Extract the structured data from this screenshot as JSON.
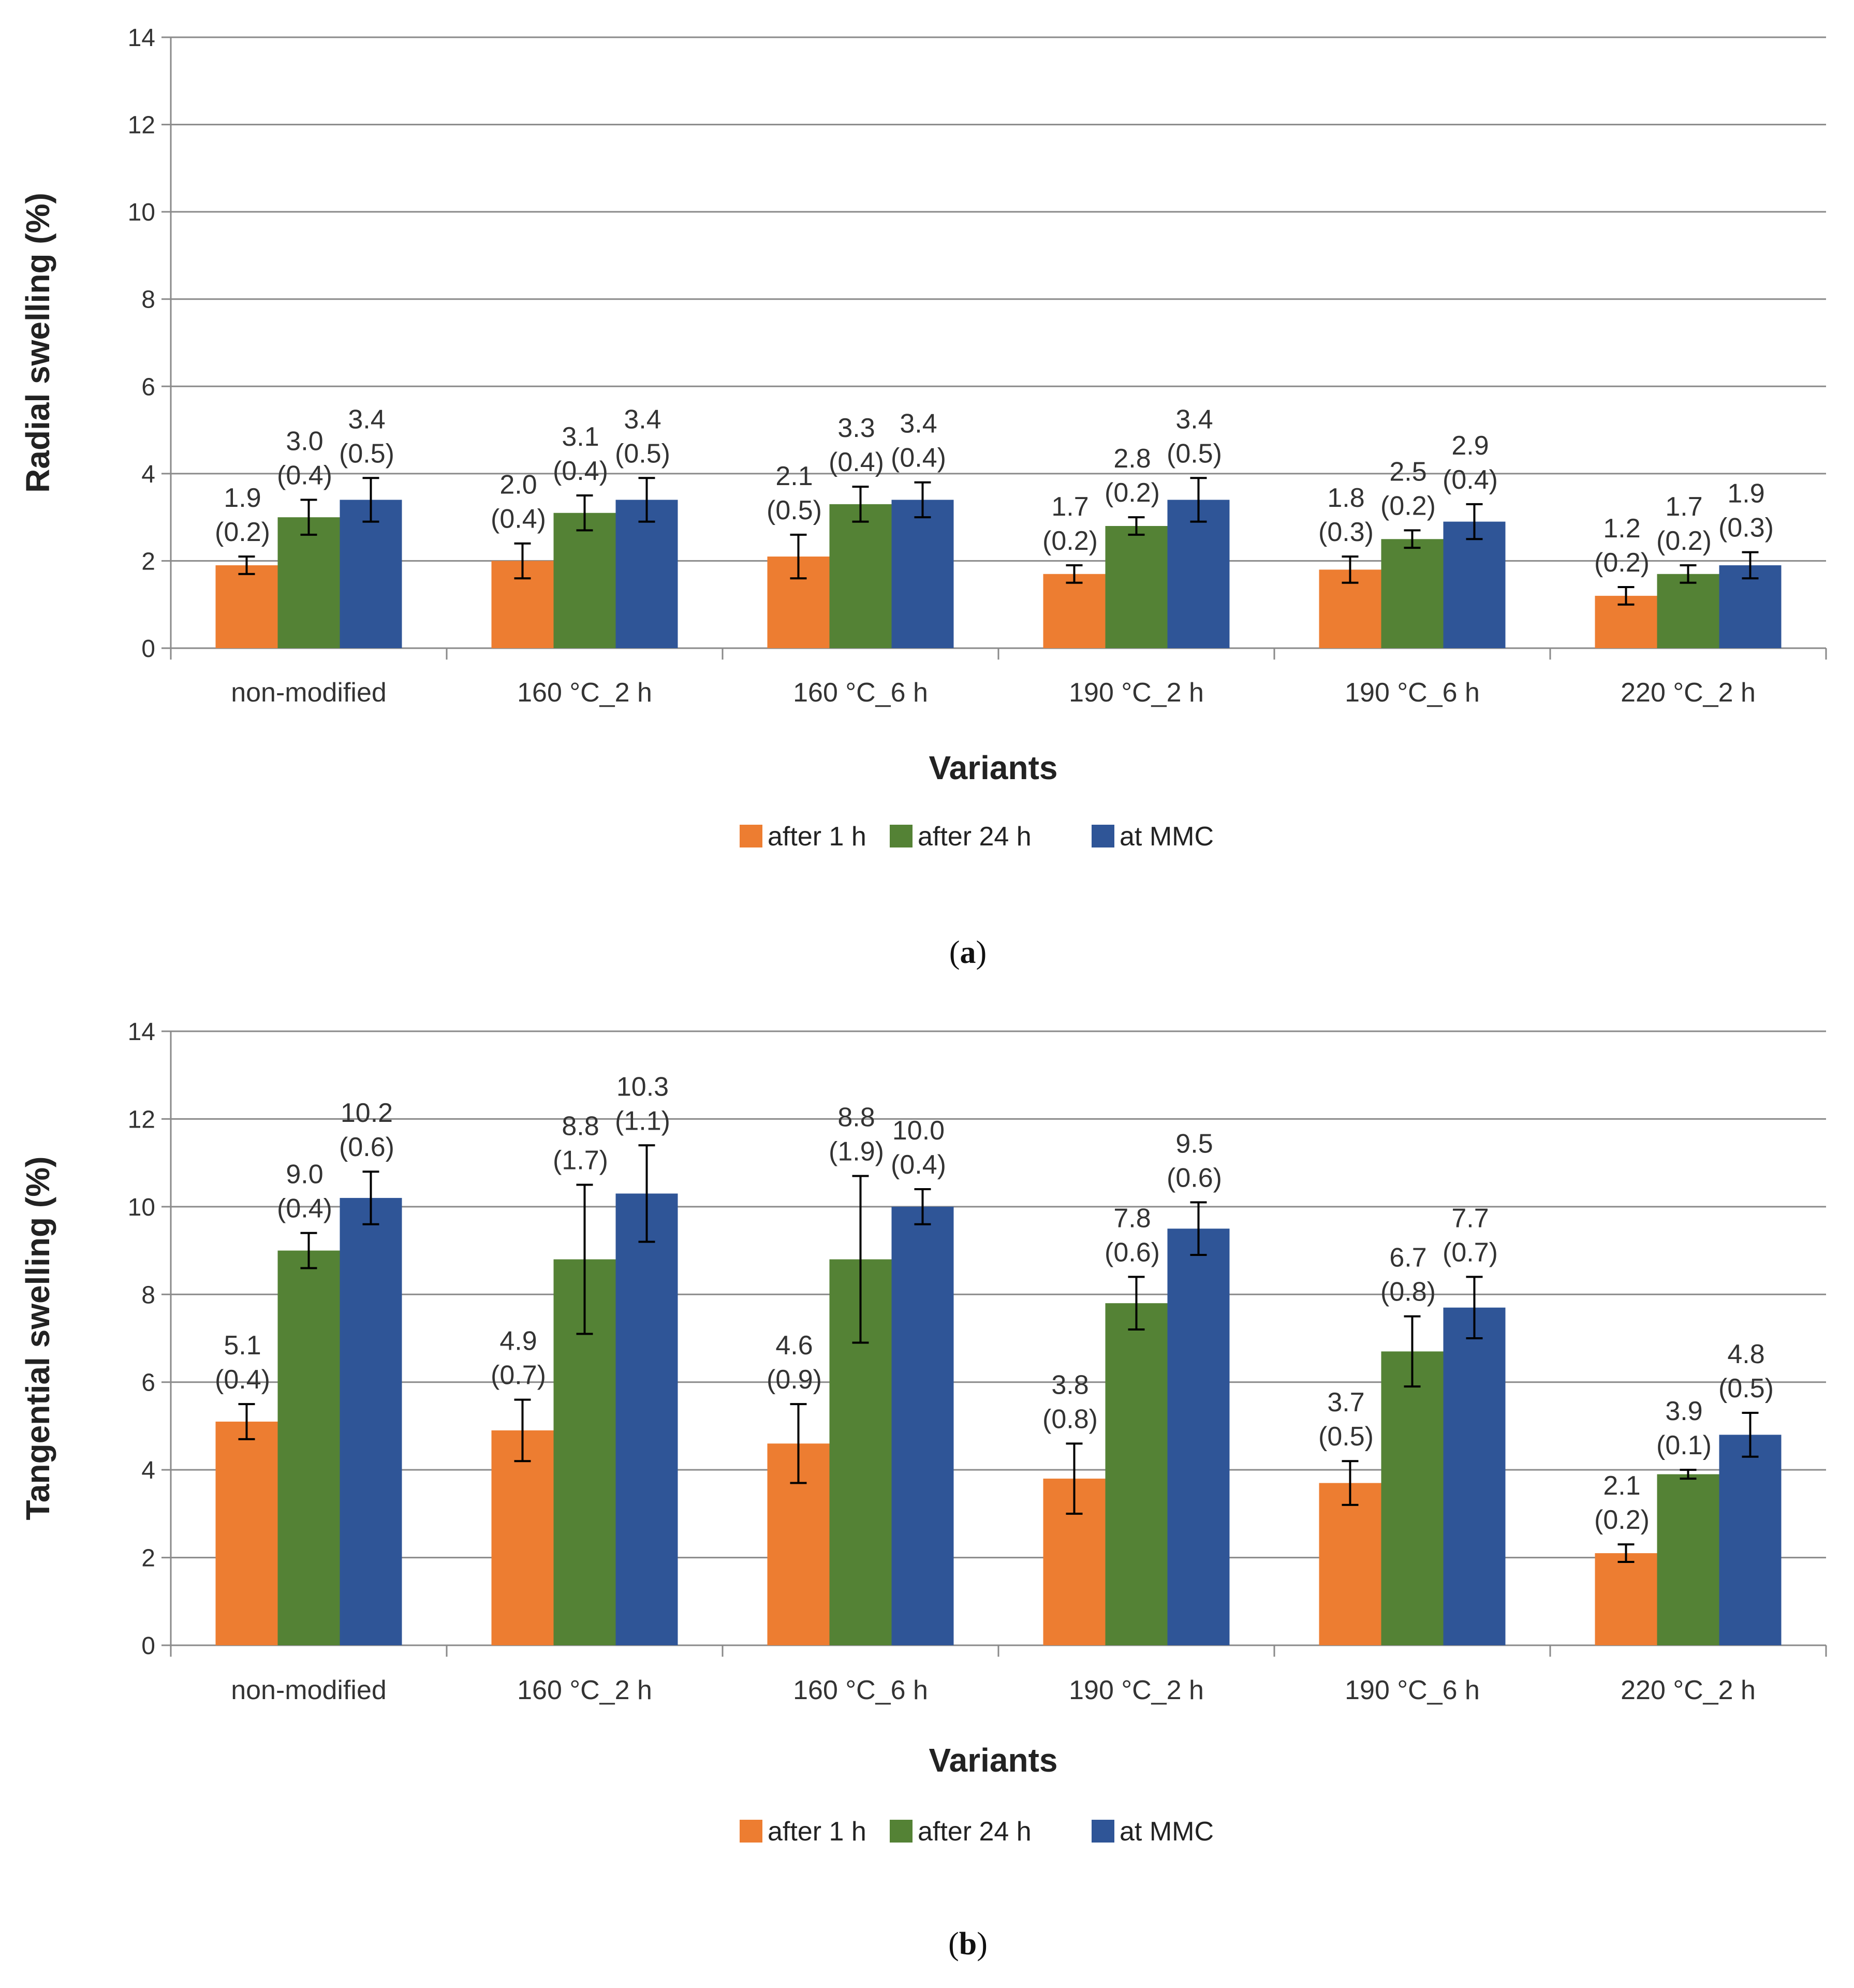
{
  "chart_data": [
    {
      "type": "bar",
      "caption_letter": "a",
      "title": "",
      "xlabel": "Variants",
      "ylabel": "Radial swelling (%)",
      "ylim": [
        0,
        14
      ],
      "yticks": [
        "0",
        "2",
        "4",
        "6",
        "8",
        "10",
        "12",
        "14"
      ],
      "grid": true,
      "legend_position": "bottom",
      "categories": [
        "non-modified",
        "160 °C_2 h",
        "160 °C_6 h",
        "190 °C_2 h",
        "190 °C_6 h",
        "220 °C_2 h"
      ],
      "series": [
        {
          "name": "after 1 h",
          "color": "#ED7D31",
          "values": [
            1.9,
            2.0,
            2.1,
            1.7,
            1.8,
            1.2
          ],
          "errors": [
            0.2,
            0.4,
            0.5,
            0.2,
            0.3,
            0.2
          ],
          "labels": [
            "1.9",
            "2.0",
            "2.1",
            "1.7",
            "1.8",
            "1.2"
          ],
          "error_labels": [
            "(0.2)",
            "(0.4)",
            "(0.5)",
            "(0.2)",
            "(0.3)",
            "(0.2)"
          ]
        },
        {
          "name": "after 24 h",
          "color": "#548235",
          "values": [
            3.0,
            3.1,
            3.3,
            2.8,
            2.5,
            1.7
          ],
          "errors": [
            0.4,
            0.4,
            0.4,
            0.2,
            0.2,
            0.2
          ],
          "labels": [
            "3.0",
            "3.1",
            "3.3",
            "2.8",
            "2.5",
            "1.7"
          ],
          "error_labels": [
            "(0.4)",
            "(0.4)",
            "(0.4)",
            "(0.2)",
            "(0.2)",
            "(0.2)"
          ]
        },
        {
          "name": "at MMC",
          "color": "#2F5597",
          "values": [
            3.4,
            3.4,
            3.4,
            3.4,
            2.9,
            1.9
          ],
          "errors": [
            0.5,
            0.5,
            0.4,
            0.5,
            0.4,
            0.3
          ],
          "labels": [
            "3.4",
            "3.4",
            "3.4",
            "3.4",
            "2.9",
            "1.9"
          ],
          "error_labels": [
            "(0.5)",
            "(0.5)",
            "(0.4)",
            "(0.5)",
            "(0.4)",
            "(0.3)"
          ]
        }
      ]
    },
    {
      "type": "bar",
      "caption_letter": "b",
      "title": "",
      "xlabel": "Variants",
      "ylabel": "Tangential swelling (%)",
      "ylim": [
        0,
        14
      ],
      "yticks": [
        "0",
        "2",
        "4",
        "6",
        "8",
        "10",
        "12",
        "14"
      ],
      "grid": true,
      "legend_position": "bottom",
      "categories": [
        "non-modified",
        "160 °C_2 h",
        "160 °C_6 h",
        "190 °C_2 h",
        "190 °C_6 h",
        "220 °C_2 h"
      ],
      "series": [
        {
          "name": "after 1 h",
          "color": "#ED7D31",
          "values": [
            5.1,
            4.9,
            4.6,
            3.8,
            3.7,
            2.1
          ],
          "errors": [
            0.4,
            0.7,
            0.9,
            0.8,
            0.5,
            0.2
          ],
          "labels": [
            "5.1",
            "4.9",
            "4.6",
            "3.8",
            "3.7",
            "2.1"
          ],
          "error_labels": [
            "(0.4)",
            "(0.7)",
            "(0.9)",
            "(0.8)",
            "(0.5)",
            "(0.2)"
          ]
        },
        {
          "name": "after 24 h",
          "color": "#548235",
          "values": [
            9.0,
            8.8,
            8.8,
            7.8,
            6.7,
            3.9
          ],
          "errors": [
            0.4,
            1.7,
            1.9,
            0.6,
            0.8,
            0.1
          ],
          "labels": [
            "9.0",
            "8.8",
            "8.8",
            "7.8",
            "6.7",
            "3.9"
          ],
          "error_labels": [
            "(0.4)",
            "(1.7)",
            "(1.9)",
            "(0.6)",
            "(0.8)",
            "(0.1)"
          ]
        },
        {
          "name": "at MMC",
          "color": "#2F5597",
          "values": [
            10.2,
            10.3,
            10.0,
            9.5,
            7.7,
            4.8
          ],
          "errors": [
            0.6,
            1.1,
            0.4,
            0.6,
            0.7,
            0.5
          ],
          "labels": [
            "10.2",
            "10.3",
            "10.0",
            "9.5",
            "7.7",
            "4.8"
          ],
          "error_labels": [
            "(0.6)",
            "(1.1)",
            "(0.4)",
            "(0.6)",
            "(0.7)",
            "(0.5)"
          ]
        }
      ]
    }
  ]
}
